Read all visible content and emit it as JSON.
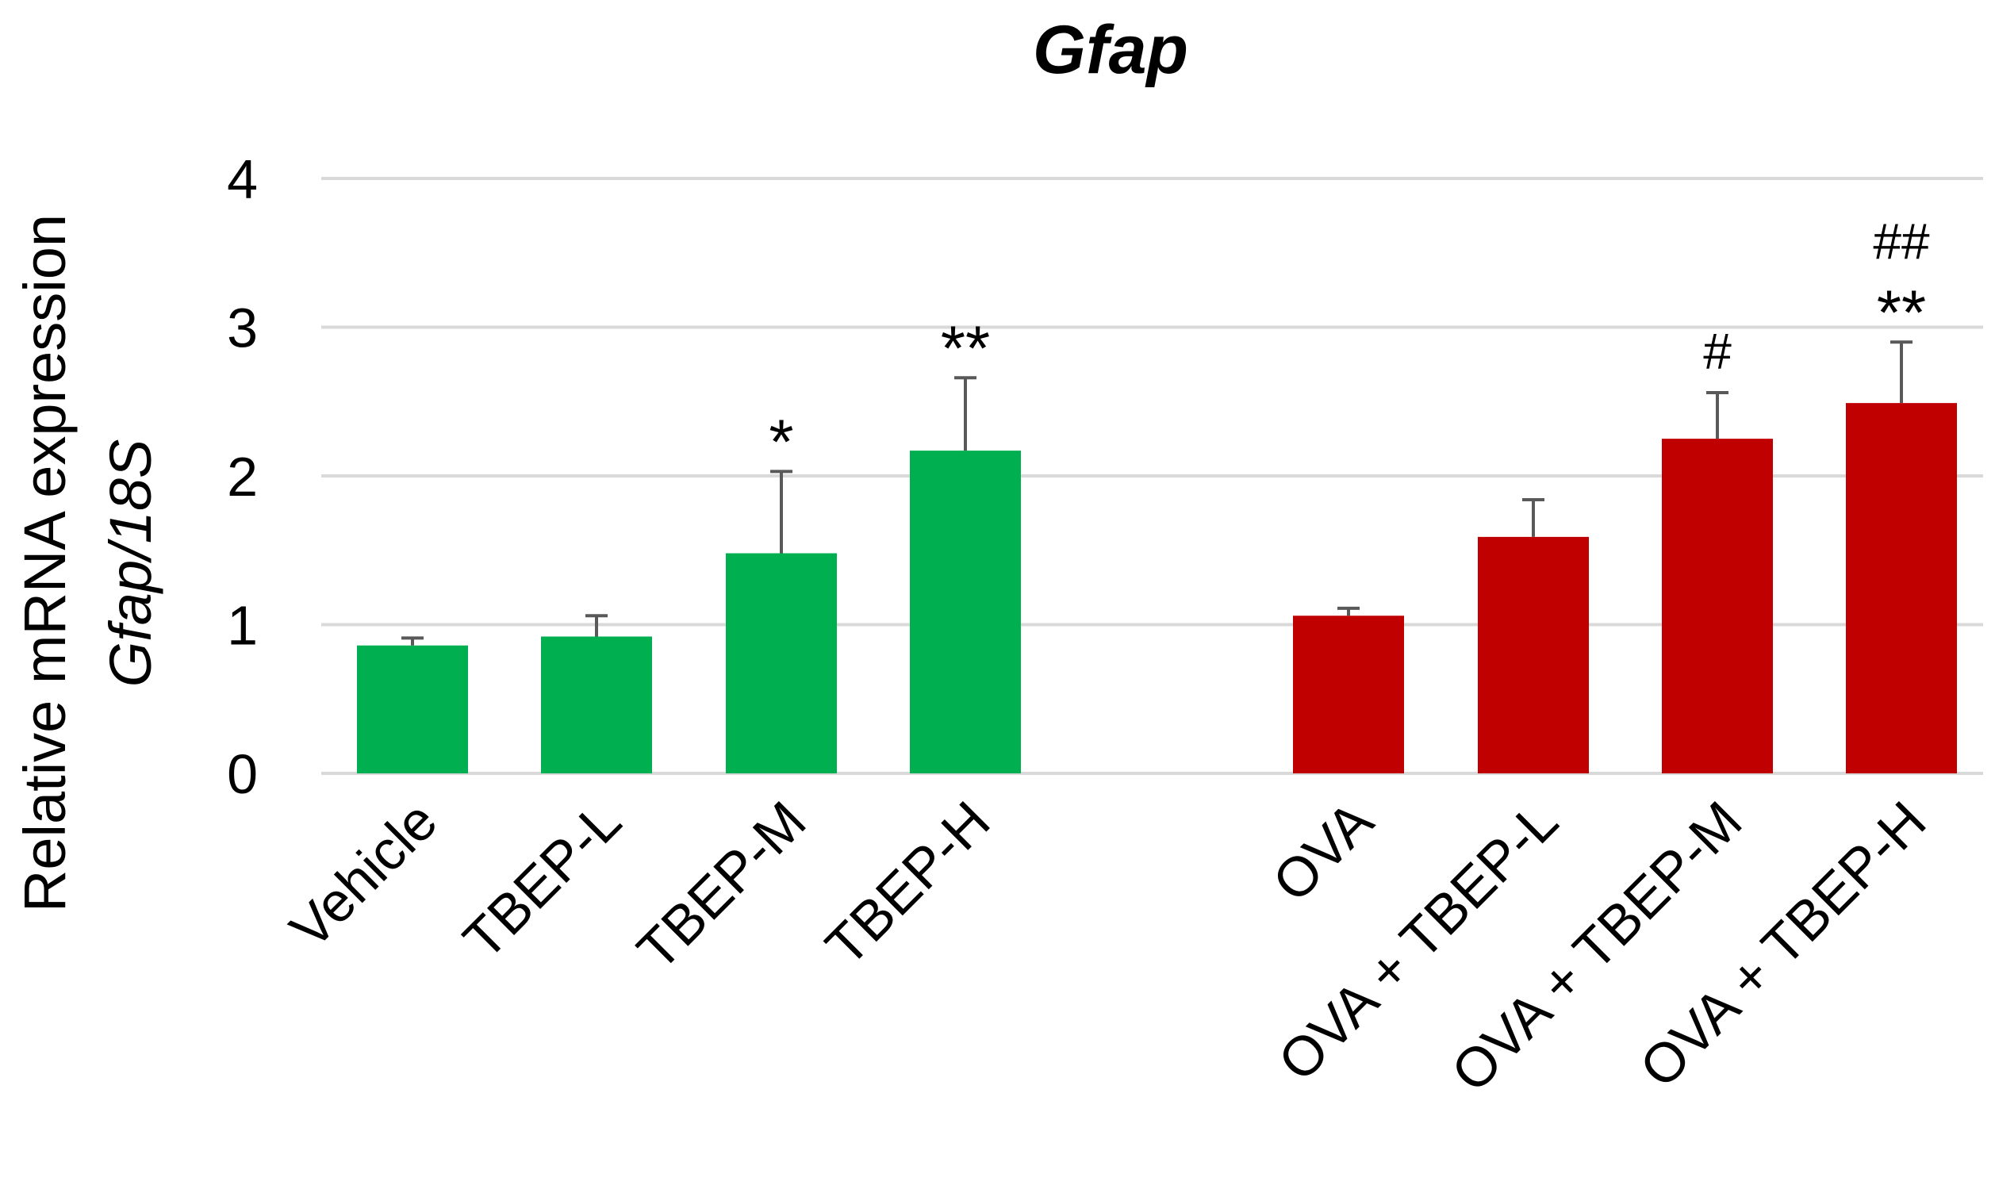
{
  "chart_data": {
    "type": "bar",
    "title": "Gfap",
    "ylabel_line1": "Relative mRNA expression",
    "ylabel_line2": "Gfap/18S",
    "xlabel": "",
    "ylim": [
      0,
      4
    ],
    "yticks": [
      0,
      1,
      2,
      3,
      4
    ],
    "grid": true,
    "categories": [
      "Vehicle",
      "TBEP-L",
      "TBEP-M",
      "TBEP-H",
      "OVA",
      "OVA + TBEP-L",
      "OVA + TBEP-M",
      "OVA + TBEP-H"
    ],
    "groups": [
      {
        "name": "control",
        "color": "#00B050",
        "bars": [
          {
            "category": "Vehicle",
            "value": 0.86,
            "error": 0.05,
            "sig": ""
          },
          {
            "category": "TBEP-L",
            "value": 0.92,
            "error": 0.14,
            "sig": ""
          },
          {
            "category": "TBEP-M",
            "value": 1.48,
            "error": 0.55,
            "sig": "*"
          },
          {
            "category": "TBEP-H",
            "value": 2.17,
            "error": 0.49,
            "sig": "**"
          }
        ]
      },
      {
        "name": "ova",
        "color": "#C00000",
        "bars": [
          {
            "category": "OVA",
            "value": 1.06,
            "error": 0.05,
            "sig": ""
          },
          {
            "category": "OVA + TBEP-L",
            "value": 1.59,
            "error": 0.25,
            "sig": ""
          },
          {
            "category": "OVA + TBEP-M",
            "value": 2.25,
            "error": 0.31,
            "sig": "#"
          },
          {
            "category": "OVA + TBEP-H",
            "value": 2.49,
            "error": 0.41,
            "sig": "##\n**"
          }
        ]
      }
    ],
    "gridline_color": "#D9D9D9",
    "errorbar_color": "#595959"
  }
}
